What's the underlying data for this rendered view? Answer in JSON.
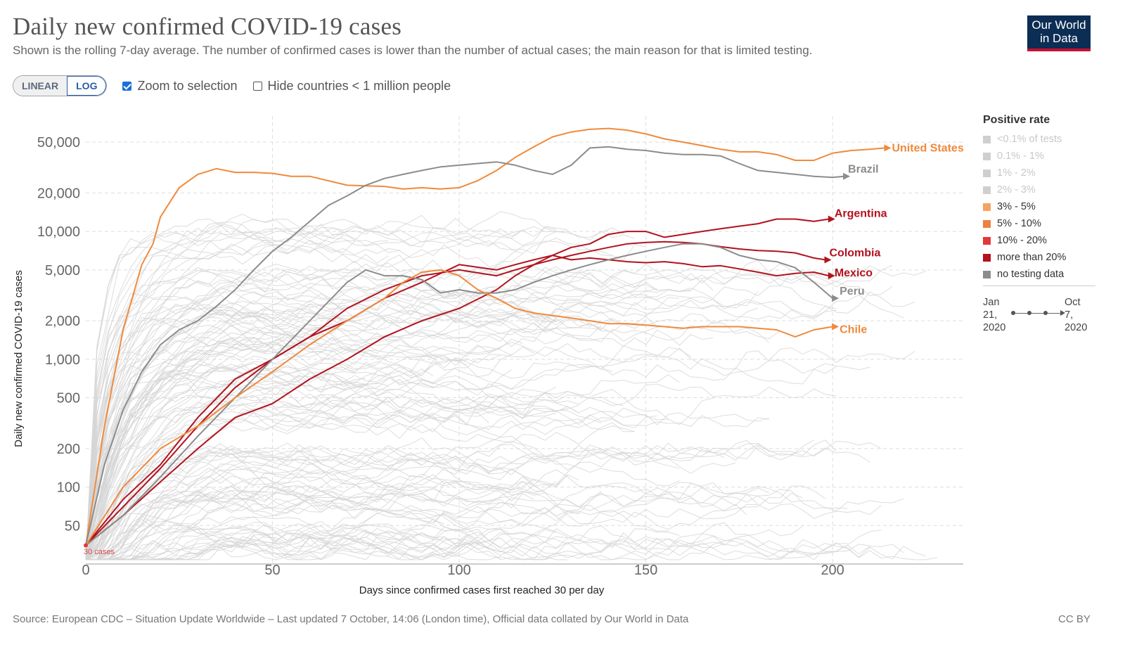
{
  "header": {
    "title": "Daily new confirmed COVID-19 cases",
    "subtitle": "Shown is the rolling 7-day average. The number of confirmed cases is lower than the number of actual cases; the main reason for that is limited testing.",
    "logo_line1": "Our World",
    "logo_line2": "in Data"
  },
  "controls": {
    "linear_label": "LINEAR",
    "log_label": "LOG",
    "zoom_label": "Zoom to selection",
    "zoom_checked": true,
    "hide_label": "Hide countries < 1 million people",
    "hide_checked": false
  },
  "legend": {
    "title": "Positive rate",
    "items": [
      {
        "label": "<0.1% of tests",
        "color": "#cfcfcf",
        "dim": true
      },
      {
        "label": "0.1% - 1%",
        "color": "#cfcfcf",
        "dim": true
      },
      {
        "label": "1% - 2%",
        "color": "#cfcfcf",
        "dim": true
      },
      {
        "label": "2% - 3%",
        "color": "#cfcfcf",
        "dim": true
      },
      {
        "label": "3% - 5%",
        "color": "#f4a462",
        "dim": false
      },
      {
        "label": "5% - 10%",
        "color": "#ec8040",
        "dim": false
      },
      {
        "label": "10% - 20%",
        "color": "#e3373a",
        "dim": false
      },
      {
        "label": "more than 20%",
        "color": "#b3121e",
        "dim": false
      },
      {
        "label": "no testing data",
        "color": "#8c8c8c",
        "dim": false
      }
    ]
  },
  "timeline": {
    "start_line1": "Jan",
    "start_line2": "21,",
    "start_line3": "2020",
    "end_line1": "Oct",
    "end_line2": "7,",
    "end_line3": "2020"
  },
  "footer": {
    "source": "Source: European CDC – Situation Update Worldwide – Last updated 7 October, 14:06 (London time), Official data collated by Our World in Data",
    "license": "CC BY"
  },
  "chart_data": {
    "type": "line",
    "title": "Daily new confirmed COVID-19 cases",
    "xlabel": "Days since confirmed cases first reached 30 per day",
    "ylabel": "Daily new confirmed COVID-19 cases",
    "y_scale": "log",
    "xlim": [
      0,
      235
    ],
    "ylim": [
      25,
      80000
    ],
    "x_ticks": [
      0,
      50,
      100,
      150,
      200
    ],
    "x_tick_labels": [
      "0",
      "50",
      "100",
      "150",
      "200"
    ],
    "y_ticks": [
      50,
      100,
      200,
      500,
      1000,
      2000,
      5000,
      10000,
      20000,
      50000
    ],
    "y_tick_labels": [
      "50",
      "100",
      "200",
      "500",
      "1,000",
      "2,000",
      "5,000",
      "10,000",
      "20,000",
      "50,000"
    ],
    "grid": true,
    "start_marker_label": "30 cases",
    "series": [
      {
        "name": "United States",
        "color": "#ef8a3c",
        "x": [
          0,
          5,
          10,
          15,
          18,
          20,
          25,
          30,
          35,
          40,
          45,
          50,
          55,
          60,
          70,
          80,
          85,
          90,
          95,
          100,
          105,
          110,
          115,
          120,
          125,
          130,
          135,
          140,
          145,
          150,
          155,
          160,
          165,
          170,
          175,
          180,
          185,
          190,
          195,
          200,
          205,
          210,
          214
        ],
        "y": [
          35,
          300,
          1700,
          5500,
          8000,
          13000,
          22000,
          28000,
          31000,
          29000,
          29000,
          28500,
          27000,
          27000,
          23000,
          22500,
          21500,
          22000,
          21500,
          22000,
          25000,
          30000,
          38000,
          46000,
          55000,
          60000,
          63000,
          64000,
          62000,
          58000,
          53000,
          50000,
          47000,
          44000,
          42000,
          42000,
          40000,
          36000,
          36000,
          41000,
          43000,
          44000,
          45000
        ]
      },
      {
        "name": "Brazil",
        "color": "#8c8c8c",
        "x": [
          0,
          5,
          10,
          15,
          20,
          25,
          30,
          35,
          40,
          45,
          50,
          55,
          60,
          65,
          70,
          75,
          80,
          85,
          90,
          95,
          100,
          105,
          110,
          115,
          120,
          125,
          130,
          135,
          140,
          145,
          150,
          155,
          160,
          165,
          170,
          175,
          180,
          185,
          190,
          195,
          200,
          203
        ],
        "y": [
          35,
          150,
          400,
          800,
          1300,
          1700,
          2000,
          2600,
          3500,
          5000,
          7000,
          9000,
          12000,
          16000,
          19000,
          23000,
          26000,
          28000,
          30000,
          32000,
          33000,
          34000,
          35000,
          33000,
          30000,
          28000,
          33000,
          45000,
          46000,
          44000,
          43000,
          41000,
          40000,
          40000,
          39000,
          34000,
          30000,
          29000,
          28000,
          27000,
          26500,
          27000
        ]
      },
      {
        "name": "Argentina",
        "color": "#b3121e",
        "x": [
          0,
          10,
          20,
          30,
          40,
          50,
          60,
          70,
          80,
          90,
          100,
          110,
          115,
          120,
          125,
          130,
          135,
          140,
          145,
          150,
          155,
          160,
          165,
          170,
          175,
          180,
          185,
          190,
          195,
          199
        ],
        "y": [
          35,
          60,
          110,
          200,
          350,
          450,
          700,
          1000,
          1500,
          2000,
          2500,
          3500,
          4500,
          5500,
          6500,
          7500,
          8000,
          9500,
          10000,
          10000,
          9000,
          9500,
          10000,
          10500,
          11000,
          11500,
          12500,
          12500,
          12000,
          12500
        ]
      },
      {
        "name": "Colombia",
        "color": "#b3121e",
        "x": [
          0,
          10,
          20,
          30,
          40,
          50,
          60,
          70,
          80,
          90,
          100,
          110,
          115,
          120,
          125,
          130,
          135,
          140,
          145,
          150,
          155,
          160,
          165,
          170,
          175,
          180,
          185,
          190,
          195,
          198
        ],
        "y": [
          35,
          80,
          150,
          350,
          700,
          1000,
          1500,
          2500,
          3500,
          4500,
          5000,
          4500,
          5000,
          5500,
          6000,
          6500,
          7000,
          7500,
          8000,
          8200,
          8300,
          8200,
          8000,
          7600,
          7300,
          7100,
          7000,
          6800,
          6200,
          6000
        ]
      },
      {
        "name": "Mexico",
        "color": "#b3121e",
        "x": [
          0,
          10,
          20,
          30,
          40,
          50,
          60,
          70,
          80,
          90,
          100,
          110,
          115,
          120,
          125,
          130,
          135,
          140,
          145,
          150,
          155,
          160,
          165,
          170,
          175,
          180,
          185,
          190,
          195,
          199
        ],
        "y": [
          35,
          70,
          140,
          300,
          600,
          1000,
          1500,
          2000,
          3000,
          4000,
          5500,
          5000,
          5500,
          6000,
          6500,
          6000,
          6200,
          6000,
          5800,
          5700,
          5800,
          5600,
          5300,
          5400,
          5100,
          4800,
          4500,
          4700,
          4800,
          4500
        ]
      },
      {
        "name": "Peru",
        "color": "#8c8c8c",
        "x": [
          0,
          10,
          20,
          30,
          40,
          50,
          60,
          70,
          75,
          80,
          85,
          90,
          95,
          100,
          105,
          110,
          115,
          120,
          125,
          130,
          135,
          140,
          145,
          150,
          155,
          160,
          165,
          170,
          175,
          180,
          185,
          190,
          195,
          200
        ],
        "y": [
          35,
          60,
          120,
          250,
          500,
          1000,
          2000,
          4000,
          5000,
          4500,
          4500,
          4200,
          3300,
          3500,
          3300,
          3300,
          3500,
          4000,
          4500,
          5000,
          5500,
          6000,
          6500,
          7000,
          7500,
          8000,
          8000,
          7500,
          6500,
          6000,
          5800,
          5200,
          4000,
          3000
        ]
      },
      {
        "name": "Chile",
        "color": "#ef8a3c",
        "x": [
          0,
          10,
          20,
          30,
          40,
          50,
          60,
          70,
          80,
          85,
          90,
          95,
          100,
          105,
          110,
          115,
          120,
          125,
          130,
          135,
          140,
          145,
          150,
          155,
          160,
          165,
          170,
          175,
          180,
          185,
          190,
          195,
          200
        ],
        "y": [
          35,
          100,
          200,
          300,
          500,
          800,
          1300,
          2000,
          3000,
          4000,
          4800,
          5000,
          4500,
          3500,
          3000,
          2500,
          2300,
          2200,
          2100,
          2000,
          1900,
          1900,
          1850,
          1800,
          1750,
          1800,
          1800,
          1800,
          1750,
          1700,
          1500,
          1700,
          1800
        ]
      }
    ]
  }
}
